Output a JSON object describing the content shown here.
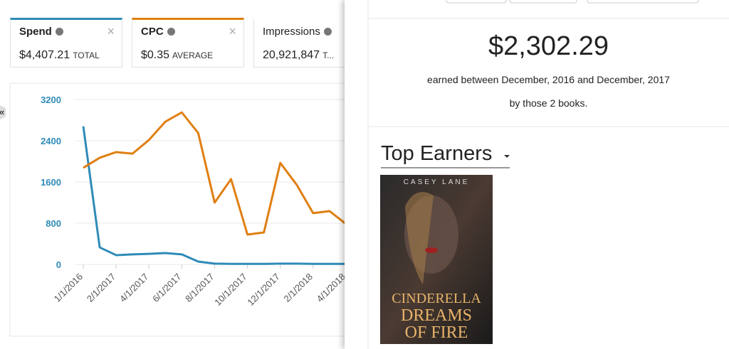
{
  "chart_data": {
    "type": "line",
    "categories": [
      "1/1/2016",
      null,
      "2/1/2017",
      null,
      "4/1/2017",
      null,
      "6/1/2017",
      null,
      "8/1/2017",
      null,
      "10/1/2017",
      null,
      "12/1/2017",
      null,
      "2/1/2018",
      null,
      "4/1/2018"
    ],
    "series": [
      {
        "name": "Spend",
        "color": "#2e8bb8",
        "total": "$4,407.21",
        "total_label": "TOTAL",
        "values": [
          2680,
          330,
          180,
          195,
          205,
          220,
          195,
          55,
          15,
          10,
          10,
          10,
          15,
          15,
          10,
          10,
          10
        ]
      },
      {
        "name": "CPC",
        "color": "#e07f12",
        "total": "$0.35",
        "total_label": "AVERAGE",
        "values": [
          1875,
          2070,
          2180,
          2150,
          2415,
          2770,
          2950,
          2550,
          1200,
          1655,
          580,
          620,
          1970,
          1545,
          995,
          1035,
          785
        ]
      }
    ],
    "ylim": [
      0,
      3200
    ],
    "yticks": [
      0,
      800,
      1600,
      2400,
      3200
    ],
    "grid": true
  },
  "other_metric": {
    "name": "Impressions",
    "value": "20,921,847",
    "label": "T..."
  },
  "panel": {
    "amount": "$2,302.29",
    "line1": "earned between December, 2016 and December, 2017",
    "line2": "by those 2 books.",
    "heading": "Top Earners",
    "book": {
      "author": "CASEY LANE",
      "title": [
        "CINDERELLA",
        "DREAMS",
        "OF FIRE"
      ]
    }
  }
}
